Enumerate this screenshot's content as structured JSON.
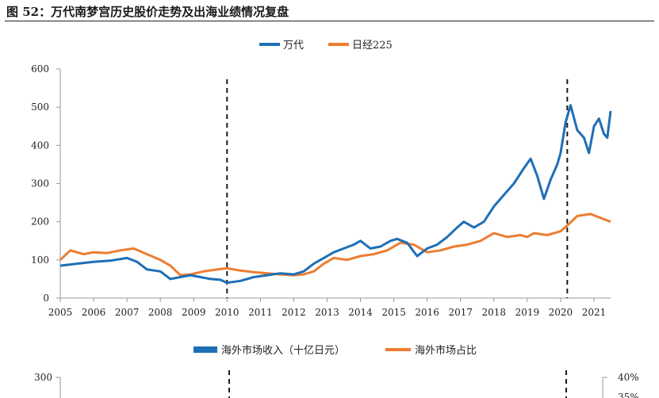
{
  "figure_title": "图 52：万代南梦宫历史股价走势及出海业绩情况复盘",
  "colors": {
    "wandai": "#1f6fb5",
    "nikkei": "#ed7d31",
    "axis": "#999999",
    "divider": "#1a1a1a"
  },
  "chart_data": [
    {
      "type": "line",
      "xlabel": "",
      "ylabel": "",
      "xlim": [
        2005,
        2021.5
      ],
      "ylim": [
        0,
        600
      ],
      "y_ticks": [
        0,
        100,
        200,
        300,
        400,
        500,
        600
      ],
      "x_ticks": [
        2005,
        2006,
        2007,
        2008,
        2009,
        2010,
        2011,
        2012,
        2013,
        2014,
        2015,
        2016,
        2017,
        2018,
        2019,
        2020,
        2021
      ],
      "legend_position": "top-center",
      "markers": [
        2010.0,
        2020.2
      ],
      "series": [
        {
          "name": "万代",
          "color": "#1f6fb5",
          "x": [
            2005.0,
            2005.5,
            2006.0,
            2006.5,
            2007.0,
            2007.3,
            2007.6,
            2008.0,
            2008.3,
            2008.6,
            2008.9,
            2009.2,
            2009.5,
            2009.8,
            2010.0,
            2010.4,
            2010.8,
            2011.2,
            2011.6,
            2012.0,
            2012.3,
            2012.6,
            2012.9,
            2013.2,
            2013.5,
            2013.8,
            2014.0,
            2014.3,
            2014.6,
            2014.9,
            2015.1,
            2015.4,
            2015.7,
            2016.0,
            2016.3,
            2016.6,
            2016.9,
            2017.1,
            2017.4,
            2017.7,
            2018.0,
            2018.3,
            2018.6,
            2018.9,
            2019.1,
            2019.3,
            2019.5,
            2019.7,
            2019.9,
            2020.0,
            2020.15,
            2020.3,
            2020.5,
            2020.7,
            2020.85,
            2021.0,
            2021.15,
            2021.3,
            2021.4,
            2021.5
          ],
          "y": [
            85,
            90,
            95,
            98,
            105,
            95,
            75,
            70,
            50,
            55,
            60,
            55,
            50,
            48,
            40,
            45,
            55,
            60,
            65,
            62,
            70,
            90,
            105,
            120,
            130,
            140,
            150,
            130,
            135,
            150,
            155,
            145,
            110,
            130,
            140,
            160,
            185,
            200,
            185,
            200,
            240,
            270,
            300,
            340,
            365,
            320,
            260,
            310,
            350,
            380,
            460,
            505,
            440,
            420,
            380,
            450,
            470,
            430,
            420,
            490
          ]
        },
        {
          "name": "日经225",
          "color": "#ed7d31",
          "x": [
            2005.0,
            2005.3,
            2005.7,
            2006.0,
            2006.4,
            2006.8,
            2007.2,
            2007.6,
            2008.0,
            2008.3,
            2008.6,
            2008.9,
            2009.3,
            2009.7,
            2010.0,
            2010.4,
            2010.8,
            2011.2,
            2011.6,
            2012.0,
            2012.3,
            2012.6,
            2012.9,
            2013.2,
            2013.6,
            2014.0,
            2014.4,
            2014.8,
            2015.2,
            2015.6,
            2016.0,
            2016.4,
            2016.8,
            2017.2,
            2017.6,
            2018.0,
            2018.4,
            2018.8,
            2019.0,
            2019.2,
            2019.6,
            2020.0,
            2020.2,
            2020.5,
            2020.9,
            2021.2,
            2021.5
          ],
          "y": [
            100,
            125,
            115,
            120,
            118,
            125,
            130,
            115,
            100,
            85,
            60,
            62,
            70,
            75,
            78,
            72,
            68,
            65,
            62,
            60,
            62,
            70,
            90,
            105,
            100,
            110,
            115,
            125,
            145,
            140,
            120,
            125,
            135,
            140,
            150,
            170,
            160,
            165,
            160,
            170,
            165,
            175,
            190,
            215,
            220,
            210,
            200
          ]
        }
      ]
    },
    {
      "type": "bar",
      "xlabel": "",
      "ylabel": "",
      "ylim": [
        0,
        300
      ],
      "y2lim": [
        0,
        40
      ],
      "y_ticks_visible": [
        300
      ],
      "y2_ticks_visible": [
        "40%",
        "35%"
      ],
      "legend_position": "top-center",
      "series": [
        {
          "name": "海外市场收入（十亿日元）",
          "color": "#1f6fb5"
        },
        {
          "name": "海外市场占比",
          "color": "#ed7d31"
        }
      ]
    }
  ]
}
